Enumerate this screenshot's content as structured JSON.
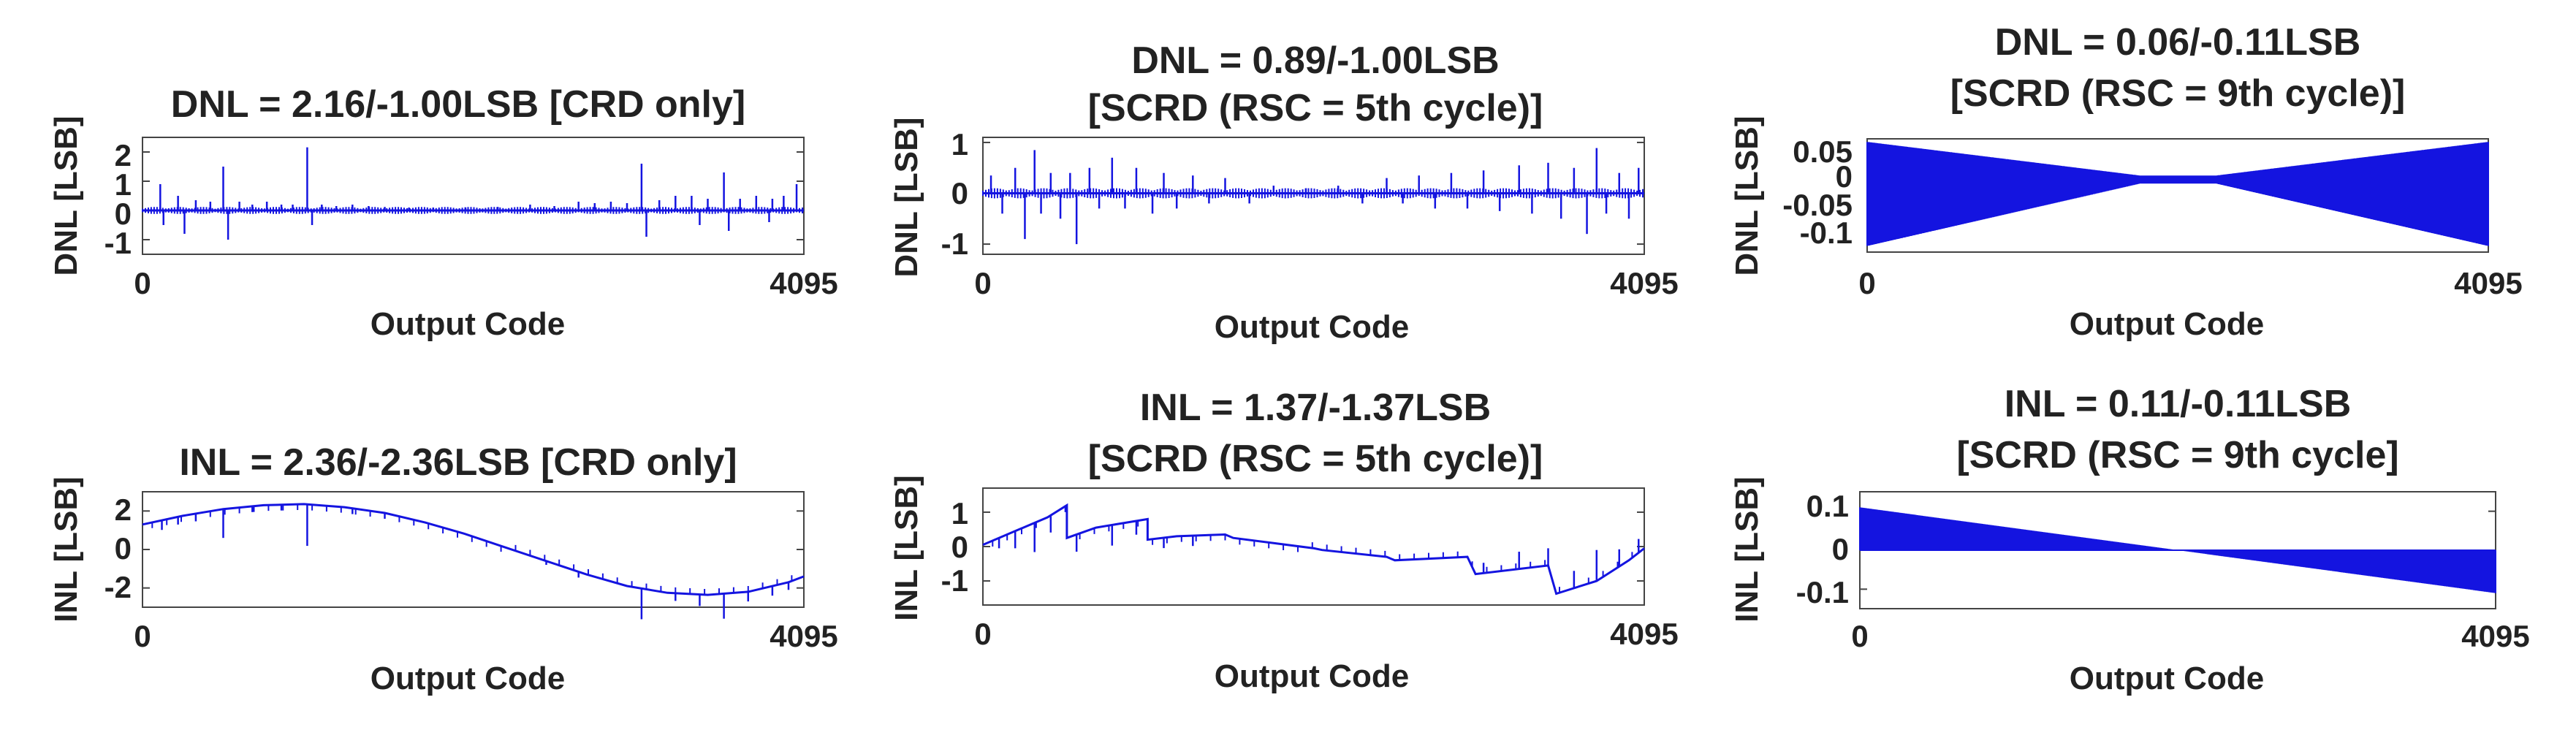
{
  "chart_data": [
    {
      "id": "dnl_crd",
      "type": "line",
      "title": [
        "DNL = 2.16/-1.00LSB [CRD only]"
      ],
      "xlabel": "Output Code",
      "ylabel": "DNL [LSB]",
      "xlim": [
        0,
        4095
      ],
      "ylim": [
        -1.5,
        2.5
      ],
      "xticks": [
        0,
        4095
      ],
      "yticks": [
        -1,
        0,
        1,
        2
      ],
      "ytick_labels": [
        "-1",
        "0",
        "1",
        "2"
      ],
      "grid": false,
      "color": "#1414e0",
      "series": [
        {
          "baseline": [
            [
              0,
              0
            ],
            [
              4095,
              0
            ]
          ],
          "band": 0.12,
          "spikes": [
            [
              110,
              0.9
            ],
            [
              130,
              -0.5
            ],
            [
              220,
              0.5
            ],
            [
              260,
              -0.8
            ],
            [
              330,
              0.35
            ],
            [
              420,
              0.3
            ],
            [
              500,
              1.5
            ],
            [
              530,
              -1.0
            ],
            [
              600,
              0.3
            ],
            [
              680,
              0.2
            ],
            [
              770,
              0.3
            ],
            [
              860,
              0.2
            ],
            [
              930,
              0.2
            ],
            [
              1020,
              2.16
            ],
            [
              1050,
              -0.5
            ],
            [
              1110,
              0.2
            ],
            [
              1200,
              0.15
            ],
            [
              1300,
              0.2
            ],
            [
              1400,
              0.15
            ],
            [
              1500,
              0.12
            ],
            [
              1650,
              0.1
            ],
            [
              1800,
              0.1
            ],
            [
              2000,
              0.1
            ],
            [
              2200,
              0.12
            ],
            [
              2400,
              0.2
            ],
            [
              2550,
              0.15
            ],
            [
              2700,
              0.3
            ],
            [
              2800,
              0.25
            ],
            [
              2900,
              0.3
            ],
            [
              3000,
              0.25
            ],
            [
              3090,
              1.6
            ],
            [
              3120,
              -0.9
            ],
            [
              3200,
              0.35
            ],
            [
              3300,
              0.5
            ],
            [
              3400,
              0.5
            ],
            [
              3450,
              -0.5
            ],
            [
              3500,
              0.4
            ],
            [
              3600,
              1.3
            ],
            [
              3630,
              -0.7
            ],
            [
              3700,
              0.4
            ],
            [
              3800,
              0.5
            ],
            [
              3880,
              -0.4
            ],
            [
              3900,
              0.4
            ],
            [
              3970,
              0.5
            ],
            [
              4050,
              0.9
            ]
          ]
        }
      ]
    },
    {
      "id": "dnl_scrd5",
      "type": "line",
      "title": [
        "DNL = 0.89/-1.00LSB",
        "[SCRD (RSC = 5th cycle)]"
      ],
      "xlabel": "Output Code",
      "ylabel": "DNL [LSB]",
      "xlim": [
        0,
        4095
      ],
      "ylim": [
        -1.2,
        1.1
      ],
      "xticks": [
        0,
        4095
      ],
      "yticks": [
        -1,
        0,
        1
      ],
      "ytick_labels": [
        "-1",
        "0",
        "1"
      ],
      "grid": false,
      "color": "#1414e0",
      "series": [
        {
          "baseline": [
            [
              0,
              0
            ],
            [
              4095,
              0
            ]
          ],
          "band": 0.1,
          "spikes": [
            [
              50,
              0.35
            ],
            [
              120,
              -0.4
            ],
            [
              200,
              0.5
            ],
            [
              260,
              -0.9
            ],
            [
              320,
              0.85
            ],
            [
              360,
              -0.4
            ],
            [
              420,
              0.4
            ],
            [
              480,
              -0.5
            ],
            [
              540,
              0.4
            ],
            [
              580,
              -1.0
            ],
            [
              660,
              0.5
            ],
            [
              720,
              -0.3
            ],
            [
              800,
              0.7
            ],
            [
              880,
              -0.3
            ],
            [
              950,
              0.5
            ],
            [
              1050,
              -0.4
            ],
            [
              1120,
              0.4
            ],
            [
              1200,
              -0.3
            ],
            [
              1300,
              0.35
            ],
            [
              1400,
              -0.2
            ],
            [
              1500,
              0.3
            ],
            [
              1650,
              -0.2
            ],
            [
              1800,
              0.15
            ],
            [
              2000,
              0.1
            ],
            [
              2200,
              0.15
            ],
            [
              2350,
              -0.2
            ],
            [
              2500,
              0.3
            ],
            [
              2600,
              -0.2
            ],
            [
              2700,
              0.35
            ],
            [
              2800,
              -0.3
            ],
            [
              2900,
              0.4
            ],
            [
              3000,
              -0.3
            ],
            [
              3100,
              0.45
            ],
            [
              3200,
              -0.35
            ],
            [
              3320,
              0.55
            ],
            [
              3400,
              -0.4
            ],
            [
              3500,
              0.6
            ],
            [
              3580,
              -0.5
            ],
            [
              3660,
              0.5
            ],
            [
              3740,
              -0.8
            ],
            [
              3800,
              0.89
            ],
            [
              3860,
              -0.4
            ],
            [
              3940,
              0.4
            ],
            [
              4000,
              -0.5
            ],
            [
              4060,
              0.5
            ]
          ]
        }
      ]
    },
    {
      "id": "dnl_scrd9",
      "type": "line",
      "title": [
        "DNL = 0.06/-0.11LSB",
        "[SCRD (RSC = 9th cycle)]"
      ],
      "xlabel": "Output Code",
      "ylabel": "DNL [LSB]",
      "xlim": [
        0,
        4095
      ],
      "ylim": [
        -0.12,
        0.065
      ],
      "xticks": [
        0,
        4095
      ],
      "yticks": [
        0.05,
        0,
        -0.05,
        -0.1
      ],
      "ytick_labels": [
        "0.05",
        "0",
        "-0.05",
        "-0.1"
      ],
      "grid": false,
      "color": "#1414e0",
      "series": [
        {
          "envelope_upper": [
            [
              0,
              0.06
            ],
            [
              1800,
              0.005
            ],
            [
              2300,
              0.005
            ],
            [
              4095,
              0.06
            ]
          ],
          "envelope_lower": [
            [
              0,
              -0.11
            ],
            [
              1800,
              -0.008
            ],
            [
              2300,
              -0.008
            ],
            [
              4095,
              -0.11
            ]
          ],
          "dense_from": 1900,
          "dense_to": 2200
        }
      ]
    },
    {
      "id": "inl_crd",
      "type": "line",
      "title": [
        "INL = 2.36/-2.36LSB [CRD only]"
      ],
      "xlabel": "Output Code",
      "ylabel": "INL [LSB]",
      "xlim": [
        0,
        4095
      ],
      "ylim": [
        -3,
        3
      ],
      "xticks": [
        0,
        4095
      ],
      "yticks": [
        2,
        0,
        -2
      ],
      "ytick_labels": [
        "2",
        "0",
        "-2"
      ],
      "grid": false,
      "color": "#1414e0",
      "series": [
        {
          "curve": [
            [
              0,
              1.3
            ],
            [
              250,
              1.75
            ],
            [
              500,
              2.1
            ],
            [
              750,
              2.3
            ],
            [
              1000,
              2.36
            ],
            [
              1250,
              2.2
            ],
            [
              1500,
              1.9
            ],
            [
              1750,
              1.4
            ],
            [
              2000,
              0.8
            ],
            [
              2250,
              0.1
            ],
            [
              2500,
              -0.6
            ],
            [
              2750,
              -1.3
            ],
            [
              3000,
              -1.9
            ],
            [
              3250,
              -2.25
            ],
            [
              3500,
              -2.36
            ],
            [
              3750,
              -2.2
            ],
            [
              4000,
              -1.7
            ],
            [
              4095,
              -1.4
            ]
          ],
          "spikes": [
            [
              120,
              -0.5
            ],
            [
              220,
              -0.4
            ],
            [
              330,
              -0.4
            ],
            [
              500,
              -1.5
            ],
            [
              680,
              -0.3
            ],
            [
              860,
              -0.3
            ],
            [
              1020,
              -2.16
            ],
            [
              1300,
              -0.3
            ],
            [
              1500,
              -0.3
            ],
            [
              2500,
              -0.2
            ],
            [
              2700,
              -0.3
            ],
            [
              3090,
              -1.6
            ],
            [
              3300,
              -0.4
            ],
            [
              3450,
              -0.6
            ],
            [
              3600,
              -1.3
            ],
            [
              3750,
              -0.5
            ],
            [
              3900,
              -0.5
            ],
            [
              4000,
              -0.4
            ]
          ]
        }
      ]
    },
    {
      "id": "inl_scrd5",
      "type": "line",
      "title": [
        "INL = 1.37/-1.37LSB",
        "[SCRD (RSC = 5th cycle)]"
      ],
      "xlabel": "Output Code",
      "ylabel": "INL [LSB]",
      "xlim": [
        0,
        4095
      ],
      "ylim": [
        -1.7,
        1.7
      ],
      "xticks": [
        0,
        4095
      ],
      "yticks": [
        1,
        0,
        -1
      ],
      "ytick_labels": [
        "1",
        "0",
        "-1"
      ],
      "grid": false,
      "color": "#1414e0",
      "series": [
        {
          "curve": [
            [
              0,
              0.05
            ],
            [
              200,
              0.45
            ],
            [
              400,
              0.85
            ],
            [
              520,
              1.2
            ],
            [
              520,
              0.25
            ],
            [
              700,
              0.55
            ],
            [
              1020,
              0.8
            ],
            [
              1020,
              0.2
            ],
            [
              1200,
              0.3
            ],
            [
              1500,
              0.35
            ],
            [
              1550,
              0.25
            ],
            [
              1800,
              0.1
            ],
            [
              2050,
              -0.05
            ],
            [
              2100,
              -0.1
            ],
            [
              2500,
              -0.3
            ],
            [
              2550,
              -0.4
            ],
            [
              3000,
              -0.3
            ],
            [
              3050,
              -0.8
            ],
            [
              3500,
              -0.55
            ],
            [
              3550,
              -1.37
            ],
            [
              3800,
              -1.0
            ],
            [
              4000,
              -0.4
            ],
            [
              4095,
              -0.05
            ]
          ],
          "spikes": [
            [
              100,
              -0.3
            ],
            [
              200,
              -0.5
            ],
            [
              320,
              -0.85
            ],
            [
              420,
              -0.5
            ],
            [
              580,
              -0.5
            ],
            [
              800,
              -0.6
            ],
            [
              950,
              -0.4
            ],
            [
              1120,
              -0.3
            ],
            [
              1300,
              -0.3
            ],
            [
              3100,
              0.3
            ],
            [
              3320,
              0.5
            ],
            [
              3500,
              0.5
            ],
            [
              3660,
              0.5
            ],
            [
              3800,
              0.9
            ],
            [
              3940,
              0.5
            ],
            [
              4060,
              0.4
            ]
          ]
        }
      ]
    },
    {
      "id": "inl_scrd9",
      "type": "line",
      "title": [
        "INL = 0.11/-0.11LSB",
        "[SCRD (RSC = 9th cycle]"
      ],
      "xlabel": "Output Code",
      "ylabel": "INL [LSB]",
      "xlim": [
        0,
        4095
      ],
      "ylim": [
        -0.15,
        0.15
      ],
      "xticks": [
        0,
        4095
      ],
      "yticks": [
        0.1,
        0,
        -0.1
      ],
      "ytick_labels": [
        "0.1",
        "0",
        "-0.1"
      ],
      "grid": false,
      "color": "#1414e0",
      "series": [
        {
          "envelope_upper": [
            [
              0,
              0.11
            ],
            [
              2050,
              0.0
            ],
            [
              4095,
              0.0
            ]
          ],
          "envelope_lower": [
            [
              0,
              0.0
            ],
            [
              2050,
              0.0
            ],
            [
              4095,
              -0.11
            ]
          ]
        }
      ]
    }
  ]
}
